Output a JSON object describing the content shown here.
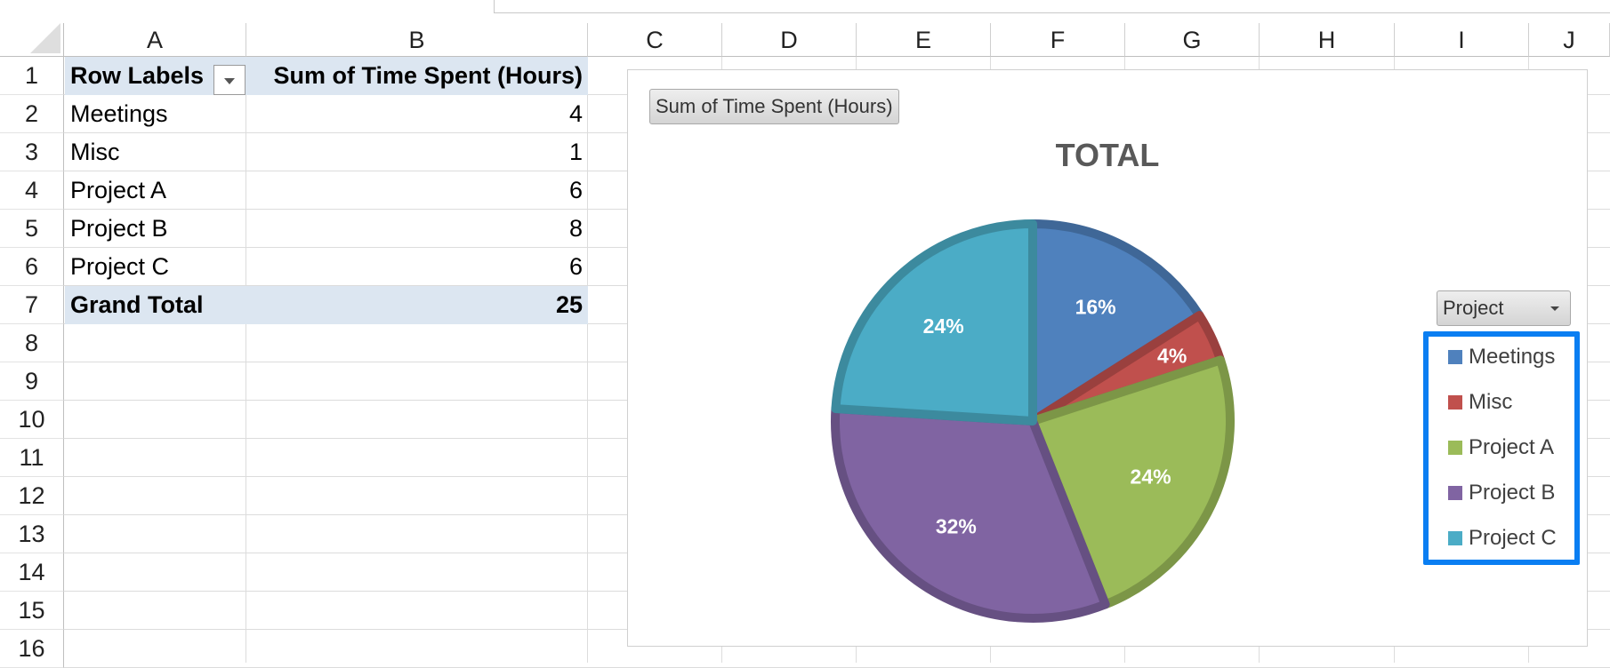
{
  "columns": [
    "A",
    "B",
    "C",
    "D",
    "E",
    "F",
    "G",
    "H",
    "I",
    "J"
  ],
  "rows": [
    "1",
    "2",
    "3",
    "4",
    "5",
    "6",
    "7",
    "8",
    "9",
    "10",
    "11",
    "12",
    "13",
    "14",
    "15",
    "16"
  ],
  "pivot": {
    "header_label": "Row Labels",
    "header_value": "Sum of Time Spent (Hours)",
    "items": [
      {
        "label": "Meetings",
        "value": "4"
      },
      {
        "label": "Misc",
        "value": "1"
      },
      {
        "label": "Project A",
        "value": "6"
      },
      {
        "label": "Project B",
        "value": "8"
      },
      {
        "label": "Project C",
        "value": "6"
      }
    ],
    "total_label": "Grand Total",
    "total_value": "25"
  },
  "chart": {
    "value_field_button": "Sum of Time Spent (Hours)",
    "legend_field_button": "Project",
    "title": "TOTAL"
  },
  "chart_data": {
    "type": "pie",
    "title": "TOTAL",
    "categories": [
      "Meetings",
      "Misc",
      "Project A",
      "Project B",
      "Project C"
    ],
    "values": [
      4,
      1,
      6,
      8,
      6
    ],
    "data_labels": [
      "16%",
      "4%",
      "24%",
      "32%",
      "24%"
    ],
    "colors": [
      "#4f81bd",
      "#c0504d",
      "#9bbb59",
      "#8064a2",
      "#4bacc6"
    ],
    "legend_position": "right"
  }
}
